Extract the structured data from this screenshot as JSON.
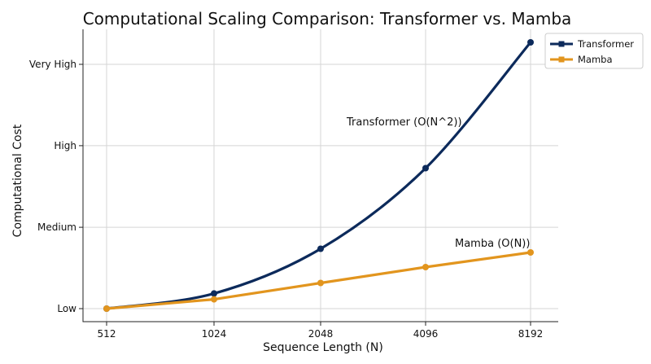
{
  "chart_data": {
    "type": "line",
    "title": "Computational Scaling Comparison: Transformer vs. Mamba",
    "xlabel": "Sequence Length (N)",
    "ylabel": "Computational Cost",
    "categories": [
      "512",
      "1024",
      "2048",
      "4096",
      "8192"
    ],
    "y_tick_labels": [
      "Low",
      "Medium",
      "High",
      "Very High"
    ],
    "ylim": [
      0,
      10
    ],
    "y_ticks": [
      0,
      3.33,
      6.67,
      10
    ],
    "grid": true,
    "legend_position": "top-right",
    "series": [
      {
        "name": "Transformer",
        "values": [
          0,
          0.62,
          2.45,
          5.75,
          10.9
        ],
        "color": "#0c2a5b",
        "marker": "circle"
      },
      {
        "name": "Mamba",
        "values": [
          0,
          0.38,
          1.05,
          1.7,
          2.3
        ],
        "color": "#e2951e",
        "marker": "circle"
      }
    ],
    "annotations": [
      {
        "text": "Transformer (O(N^2))"
      },
      {
        "text": "Mamba (O(N))"
      }
    ]
  }
}
